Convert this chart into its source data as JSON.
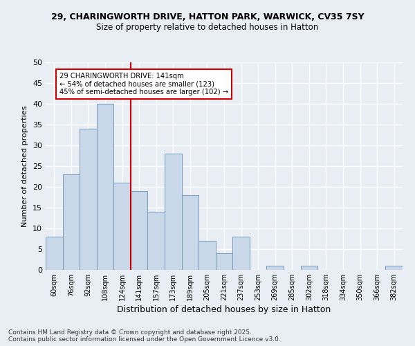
{
  "title1": "29, CHARINGWORTH DRIVE, HATTON PARK, WARWICK, CV35 7SY",
  "title2": "Size of property relative to detached houses in Hatton",
  "xlabel": "Distribution of detached houses by size in Hatton",
  "ylabel": "Number of detached properties",
  "bins": [
    "60sqm",
    "76sqm",
    "92sqm",
    "108sqm",
    "124sqm",
    "141sqm",
    "157sqm",
    "173sqm",
    "189sqm",
    "205sqm",
    "221sqm",
    "237sqm",
    "253sqm",
    "269sqm",
    "285sqm",
    "302sqm",
    "318sqm",
    "334sqm",
    "350sqm",
    "366sqm",
    "382sqm"
  ],
  "values": [
    8,
    23,
    34,
    40,
    21,
    19,
    14,
    28,
    18,
    7,
    4,
    8,
    0,
    1,
    0,
    1,
    0,
    0,
    0,
    0,
    1
  ],
  "bar_color": "#c8d8e8",
  "bar_edge_color": "#7799bb",
  "vline_color": "#cc0000",
  "annotation_text": "29 CHARINGWORTH DRIVE: 141sqm\n← 54% of detached houses are smaller (123)\n45% of semi-detached houses are larger (102) →",
  "annotation_box_color": "white",
  "annotation_box_edge": "#cc0000",
  "ylim": [
    0,
    50
  ],
  "yticks": [
    0,
    5,
    10,
    15,
    20,
    25,
    30,
    35,
    40,
    45,
    50
  ],
  "background_color": "#e8eef4",
  "grid_color": "white",
  "footer1": "Contains HM Land Registry data © Crown copyright and database right 2025.",
  "footer2": "Contains public sector information licensed under the Open Government Licence v3.0."
}
